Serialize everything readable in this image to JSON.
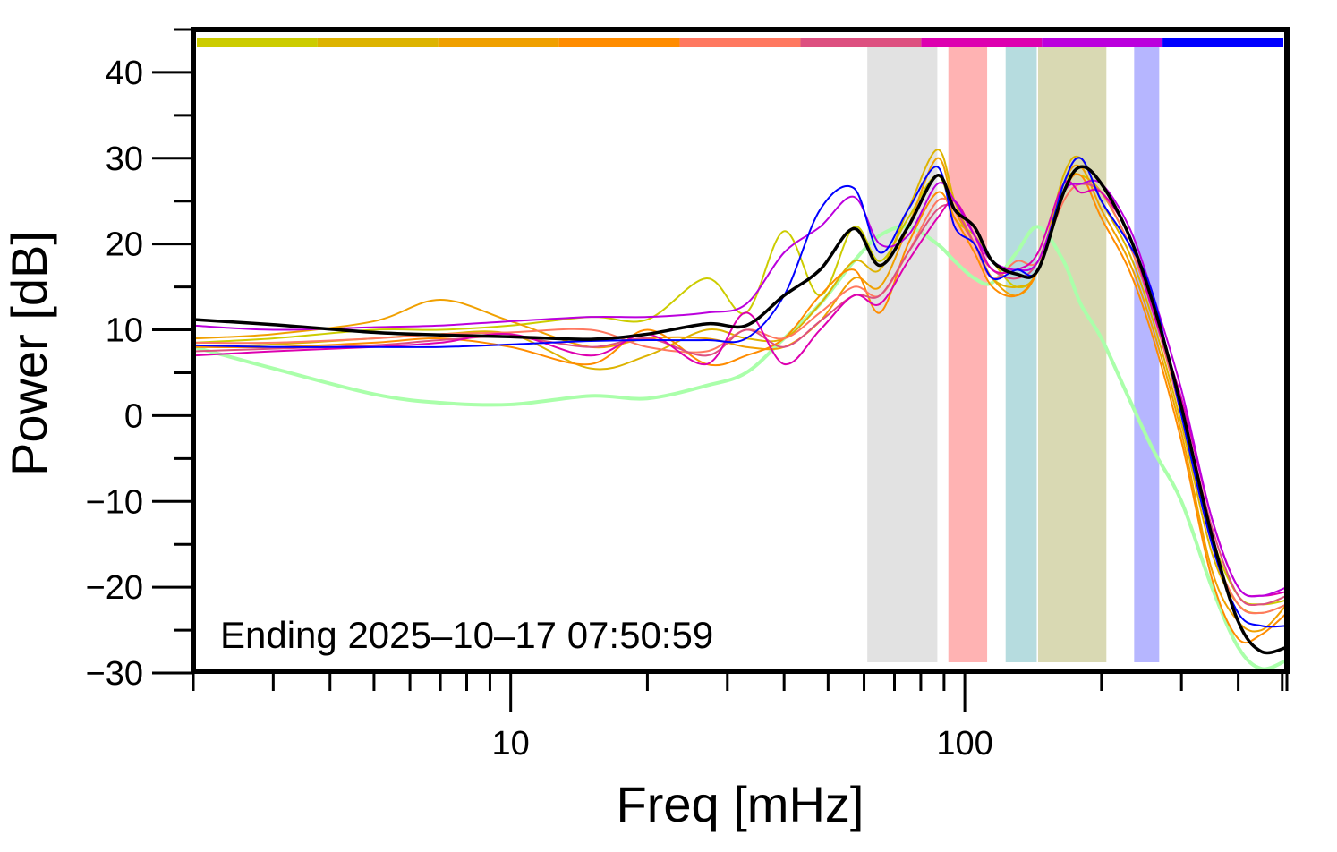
{
  "chart_data": {
    "type": "line",
    "title": "",
    "xlabel": "Freq [mHz]",
    "ylabel": "Power [dB]",
    "xscale": "log",
    "xlim": [
      2,
      512
    ],
    "ylim": [
      -30,
      45
    ],
    "grid": false,
    "x_tick_labels": [
      {
        "value": 10,
        "label": "10"
      },
      {
        "value": 100,
        "label": "100"
      }
    ],
    "y_tick_labels": [
      {
        "value": 40,
        "label": "40"
      },
      {
        "value": 30,
        "label": "30"
      },
      {
        "value": 20,
        "label": "20"
      },
      {
        "value": 10,
        "label": "10"
      },
      {
        "value": 0,
        "label": "0"
      },
      {
        "value": -10,
        "label": "−10"
      },
      {
        "value": -20,
        "label": "−20"
      },
      {
        "value": -30,
        "label": "−30"
      }
    ],
    "annotation": "Ending 2025–10–17 07:50:59",
    "color_bar": [
      "#cccc00",
      "#ddb300",
      "#f0a000",
      "#ff8c00",
      "#ff7860",
      "#dd5080",
      "#dd00b0",
      "#bb00dd",
      "#0000ff"
    ],
    "bands": [
      {
        "from": 61,
        "to": 87,
        "color": "#e2e2e2"
      },
      {
        "from": 92,
        "to": 112,
        "color": "#ffb3b3"
      },
      {
        "from": 123,
        "to": 144,
        "color": "#b6dcdf"
      },
      {
        "from": 145,
        "to": 205,
        "color": "#d9d9b3"
      },
      {
        "from": 236,
        "to": 268,
        "color": "#b6b6ff"
      }
    ],
    "x": [
      2,
      3,
      5,
      7,
      10,
      15,
      20,
      27,
      33,
      40,
      48,
      57,
      65,
      75,
      87,
      95,
      105,
      115,
      130,
      145,
      165,
      180,
      200,
      230,
      260,
      300,
      350,
      400,
      450,
      512
    ],
    "series": [
      {
        "color": "#aaffaa",
        "width": 4,
        "values": [
          8,
          5.5,
          2.5,
          1.5,
          1.3,
          2.3,
          2,
          3.5,
          5,
          9,
          13,
          18,
          21,
          22,
          20,
          18,
          16,
          15.5,
          19,
          22,
          18,
          13,
          9,
          2,
          -4,
          -10,
          -20,
          -27,
          -29.5,
          -28.5
        ]
      },
      {
        "color": "#cccc00",
        "width": 2,
        "values": [
          8.5,
          9,
          10,
          10,
          10.5,
          11.5,
          11.2,
          16,
          12,
          21.5,
          14,
          22,
          18,
          23,
          28,
          23,
          21,
          18,
          15,
          17,
          27,
          28,
          26,
          20,
          12,
          1,
          -14,
          -21,
          -22,
          -21.5
        ]
      },
      {
        "color": "#ddb300",
        "width": 2,
        "values": [
          8,
          8.3,
          9,
          9.5,
          9.5,
          5.5,
          7,
          10,
          9,
          9,
          13,
          18,
          17,
          24,
          31,
          25,
          20,
          16,
          15,
          17,
          28,
          30,
          25,
          19,
          11,
          -1,
          -16,
          -22,
          -23,
          -22
        ]
      },
      {
        "color": "#f0a000",
        "width": 2,
        "values": [
          9,
          9.5,
          11,
          13.5,
          11,
          8,
          9,
          9,
          8,
          8,
          11,
          16,
          15,
          22,
          30,
          24,
          20,
          16,
          14,
          17,
          27,
          29,
          24,
          18,
          10,
          -2,
          -18,
          -24,
          -25,
          -22
        ]
      },
      {
        "color": "#ff8c00",
        "width": 2,
        "values": [
          8,
          8,
          8.5,
          9,
          8,
          6,
          10,
          6,
          7,
          9,
          14,
          17,
          12,
          20,
          26,
          23,
          19,
          15,
          14,
          17,
          26,
          28,
          23,
          17,
          9,
          -3,
          -19,
          -26,
          -25.5,
          -23
        ]
      },
      {
        "color": "#ff7860",
        "width": 2,
        "values": [
          8.5,
          8.5,
          9,
          9.5,
          9.7,
          10,
          8,
          7.5,
          10,
          9,
          12,
          15,
          14,
          19,
          25,
          24,
          20,
          16,
          18,
          18,
          25,
          27,
          26,
          20,
          12,
          0,
          -15,
          -22,
          -23,
          -22
        ]
      },
      {
        "color": "#dd5080",
        "width": 2,
        "values": [
          7.5,
          7.8,
          8.2,
          8.8,
          9.2,
          8,
          9,
          7,
          10,
          8,
          11,
          14,
          14,
          19,
          24,
          24,
          20,
          17,
          16,
          18,
          26,
          27,
          26,
          21,
          12,
          1,
          -13,
          -21,
          -22,
          -21
        ]
      },
      {
        "color": "#dd00b0",
        "width": 2,
        "values": [
          7,
          7.5,
          8,
          8.5,
          9.5,
          7,
          9.5,
          6,
          12,
          6,
          10,
          14,
          13,
          18,
          23,
          25,
          21,
          17,
          17,
          19,
          27,
          26,
          26,
          21,
          12,
          2,
          -12,
          -20,
          -21,
          -20.5
        ]
      },
      {
        "color": "#bb00dd",
        "width": 2,
        "values": [
          10.5,
          10,
          10.3,
          10.5,
          11,
          11.5,
          11.5,
          12,
          13,
          19,
          22,
          25.5,
          20,
          21,
          27,
          25,
          21,
          18,
          17,
          18,
          26,
          27,
          27,
          22,
          14,
          3,
          -12,
          -20,
          -21,
          -20
        ]
      },
      {
        "color": "#0000ff",
        "width": 2,
        "values": [
          8.2,
          8,
          8,
          8,
          8.3,
          8.7,
          8.8,
          8.8,
          9,
          14,
          24,
          26.5,
          19,
          24,
          29,
          22,
          20,
          16,
          17,
          17,
          27,
          30,
          25,
          20,
          14,
          0,
          -15,
          -23,
          -24.5,
          -24.5
        ]
      },
      {
        "color": "#000000",
        "width": 3.5,
        "values": [
          11.2,
          10.6,
          9.7,
          9.4,
          9.2,
          8.9,
          9.5,
          10.7,
          10.5,
          14,
          17,
          21.8,
          17.5,
          22,
          28,
          24,
          22,
          18,
          16.5,
          17,
          26,
          29,
          27,
          21,
          13,
          1,
          -14,
          -24,
          -27.5,
          -27
        ]
      }
    ]
  }
}
